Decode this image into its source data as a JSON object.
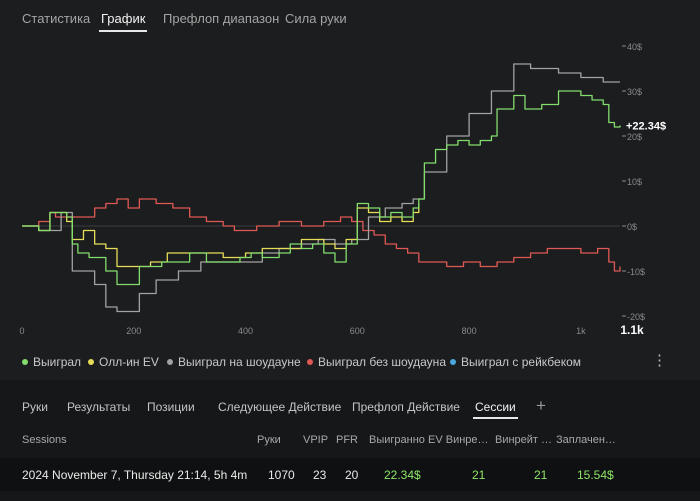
{
  "top_tabs": [
    {
      "label": "Статистика",
      "active": false
    },
    {
      "label": "График",
      "active": true
    },
    {
      "label": "Префлоп диапазон",
      "active": false
    },
    {
      "label": "Сила руки",
      "active": false
    }
  ],
  "colors": {
    "green": "#82dd6c",
    "yellow": "#e6dd59",
    "gray": "#a2a2a2",
    "red": "#e05a55",
    "blue": "#4aa6dd",
    "grid": "#3b3d41",
    "axis": "#8a8a8a"
  },
  "chart_data": {
    "type": "line",
    "x_ticks": [
      "0",
      "200",
      "400",
      "600",
      "800",
      "1k"
    ],
    "x_end_label": "1.1k",
    "y_ticks": [
      "40$",
      "30$",
      "20$",
      "10$",
      "0$",
      "-10$",
      "-20$"
    ],
    "xlim": [
      0,
      1070
    ],
    "ylim": [
      -20,
      40
    ],
    "current_value_label": "+22.34$",
    "series": [
      {
        "name": "Выиграл",
        "color": "#82dd6c",
        "x": [
          0,
          30,
          50,
          70,
          80,
          90,
          100,
          120,
          150,
          170,
          190,
          210,
          250,
          270,
          300,
          330,
          360,
          390,
          410,
          430,
          460,
          480,
          500,
          520,
          540,
          560,
          580,
          600,
          620,
          640,
          660,
          680,
          700,
          710,
          720,
          740,
          760,
          780,
          800,
          820,
          840,
          850,
          880,
          900,
          930,
          960,
          980,
          1000,
          1020,
          1040,
          1050,
          1060,
          1070
        ],
        "y": [
          0,
          -1,
          3,
          3,
          2,
          -4,
          -6,
          -7,
          -10,
          -13,
          -13,
          -9,
          -8,
          -8,
          -6,
          -8,
          -8,
          -7,
          -6,
          -7,
          -6,
          -4,
          -5,
          -4,
          -6,
          -8,
          -4,
          5,
          4,
          2,
          3,
          2,
          4,
          6,
          14,
          17,
          18,
          19,
          18,
          19,
          20,
          26,
          29,
          26,
          27,
          30,
          30,
          29,
          28,
          27,
          23,
          22,
          22.34
        ]
      },
      {
        "name": "Олл-ин EV",
        "color": "#e6dd59",
        "x": [
          0,
          30,
          50,
          70,
          80,
          90,
          110,
          130,
          150,
          170,
          200,
          230,
          260,
          290,
          330,
          360,
          400,
          430,
          470,
          500,
          520,
          540,
          560,
          580,
          600,
          620,
          640,
          660,
          680,
          700,
          710
        ],
        "y": [
          0,
          -1,
          3,
          3,
          1,
          -3,
          -1,
          -4,
          -5,
          -9,
          -9,
          -8,
          -6,
          -6,
          -6,
          -7,
          -6,
          -5,
          -5,
          -3,
          -3,
          -4,
          -5,
          -3,
          4,
          3,
          1,
          2,
          1,
          3,
          5
        ]
      },
      {
        "name": "Выиграл на шоудауне",
        "color": "#a2a2a2",
        "x": [
          0,
          30,
          70,
          90,
          110,
          130,
          150,
          170,
          190,
          210,
          240,
          280,
          320,
          360,
          400,
          430,
          460,
          500,
          530,
          560,
          590,
          620,
          650,
          680,
          700,
          720,
          760,
          800,
          840,
          880,
          910,
          930,
          960,
          1000,
          1040,
          1070
        ],
        "y": [
          0,
          -1,
          3,
          -10,
          -10,
          -13,
          -18,
          -19,
          -19,
          -15,
          -12,
          -10,
          -8,
          -8,
          -8,
          -6,
          -5,
          -4,
          -3,
          -4,
          -3,
          2,
          4,
          5,
          6,
          12,
          20,
          25,
          30,
          36,
          35,
          35,
          34,
          33,
          32,
          32
        ]
      },
      {
        "name": "Выиграл без шоудауна",
        "color": "#e05a55",
        "x": [
          0,
          30,
          50,
          60,
          80,
          100,
          130,
          150,
          170,
          190,
          210,
          240,
          270,
          300,
          330,
          360,
          380,
          420,
          460,
          500,
          540,
          570,
          590,
          610,
          630,
          650,
          670,
          690,
          710,
          730,
          760,
          790,
          820,
          850,
          880,
          910,
          940,
          970,
          1000,
          1030,
          1050,
          1060,
          1070
        ],
        "y": [
          0,
          1,
          3,
          2,
          2,
          2,
          4,
          5,
          6,
          4,
          6,
          5,
          4,
          2,
          1,
          0,
          -1,
          0,
          1,
          0,
          1,
          2,
          1,
          -1,
          -2,
          -4,
          -5,
          -6,
          -8,
          -8,
          -9,
          -8,
          -9,
          -8,
          -7,
          -6,
          -5,
          -5,
          -6,
          -5,
          -8,
          -10,
          -9
        ]
      },
      {
        "name": "Выиграл с рейкбеком",
        "color": "#4aa6dd",
        "x": [],
        "y": []
      }
    ]
  },
  "legend": {
    "items": [
      {
        "label": "Выиграл",
        "color": "#82dd6c"
      },
      {
        "label": "Олл-ин EV",
        "color": "#e6dd59"
      },
      {
        "label": "Выиграл на шоудауне",
        "color": "#a2a2a2"
      },
      {
        "label": "Выиграл без шоудауна",
        "color": "#e05a55"
      },
      {
        "label": "Выиграл с рейкбеком",
        "color": "#4aa6dd"
      }
    ],
    "more_icon": "vertical-dots-icon"
  },
  "bottom_tabs": [
    {
      "label": "Руки",
      "active": false
    },
    {
      "label": "Результаты",
      "active": false
    },
    {
      "label": "Позиции",
      "active": false
    },
    {
      "label": "Следующее Действие",
      "active": false
    },
    {
      "label": "Префлоп Действие",
      "active": false
    },
    {
      "label": "Сессии",
      "active": true
    }
  ],
  "add_tab_label": "+",
  "table": {
    "headers": [
      "Sessions",
      "Руки",
      "VPIP",
      "PFR",
      "Выигранно",
      "EV Винре…",
      "Винрейт …",
      "Заплачен…"
    ],
    "row": [
      "2024 November 7, Thursday 21:14, 5h 4m",
      "1070",
      "23",
      "20",
      "22.34$",
      "21",
      "21",
      "15.54$"
    ]
  }
}
